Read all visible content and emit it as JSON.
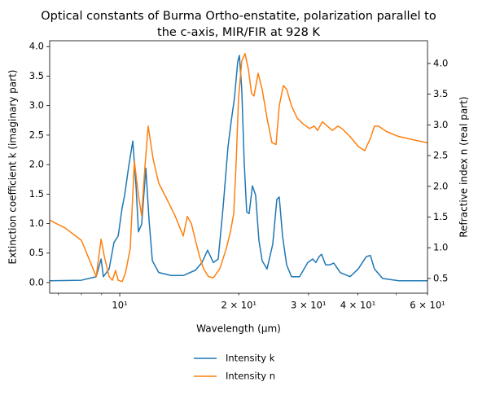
{
  "chart_data": {
    "type": "line",
    "title": [
      "Optical constants of Burma Ortho-enstatite, polarization parallel to",
      "the c-axis, MIR/FIR at 928 K"
    ],
    "x_label": "Wavelength (μm)",
    "y_label": "Extinction coefficient k (imaginary part)",
    "y2_label": "Refractive index n (real part)",
    "x_scale": "log",
    "xlim": [
      6.65,
      60
    ],
    "xticks": [
      {
        "value": 10,
        "label": "10¹"
      },
      {
        "value": 20,
        "label": "2 × 10¹"
      },
      {
        "value": 30,
        "label": "3 × 10¹"
      },
      {
        "value": 40,
        "label": "4 × 10¹"
      },
      {
        "value": 60,
        "label": "6 × 10¹"
      }
    ],
    "xminor_ticks": [
      7,
      8,
      9,
      50
    ],
    "ylim": [
      -0.18,
      4.1
    ],
    "yticks": [
      {
        "value": 0,
        "label": "0.0"
      },
      0.5,
      {
        "value": 1,
        "label": "1.0"
      },
      1.5,
      {
        "value": 2,
        "label": "2.0"
      },
      2.5,
      {
        "value": 3,
        "label": "3.0"
      },
      3.5,
      {
        "value": 4,
        "label": "4.0"
      }
    ],
    "y2lim": [
      0.26,
      4.37
    ],
    "y2ticks": [
      0.5,
      {
        "value": 1,
        "label": "1.0"
      },
      1.5,
      {
        "value": 2,
        "label": "2.0"
      },
      2.5,
      {
        "value": 3,
        "label": "3.0"
      },
      3.5,
      {
        "value": 4,
        "label": "4.0"
      }
    ],
    "legend": "lower center outside",
    "series": [
      {
        "name": "Intensity k",
        "color": "#1f77b4",
        "x": [
          6.65,
          8.0,
          8.72,
          8.97,
          9.09,
          9.4,
          9.67,
          9.91,
          10.14,
          10.29,
          10.53,
          10.79,
          11.0,
          11.15,
          11.36,
          11.64,
          11.86,
          12.09,
          12.55,
          13.48,
          14.47,
          15.54,
          16.14,
          16.68,
          17.24,
          17.74,
          18.25,
          18.78,
          19.14,
          19.5,
          19.88,
          20.07,
          20.35,
          20.64,
          20.94,
          21.24,
          21.65,
          22.06,
          22.48,
          22.91,
          23.57,
          24.37,
          24.96,
          25.31,
          25.8,
          26.42,
          27.18,
          28.49,
          29.88,
          30.74,
          31.32,
          31.92,
          32.38,
          33.16,
          33.95,
          34.77,
          36.11,
          38.22,
          40.07,
          42.02,
          43.02,
          44.06,
          46.19,
          50.78,
          60
        ],
        "values": [
          0.03,
          0.04,
          0.1,
          0.4,
          0.1,
          0.23,
          0.68,
          0.79,
          1.27,
          1.48,
          1.96,
          2.4,
          1.61,
          0.86,
          0.99,
          1.94,
          1.06,
          0.37,
          0.17,
          0.12,
          0.12,
          0.21,
          0.34,
          0.55,
          0.34,
          0.4,
          1.27,
          2.3,
          2.74,
          3.13,
          3.75,
          3.85,
          3.27,
          2.03,
          1.2,
          1.17,
          1.64,
          1.48,
          0.72,
          0.37,
          0.23,
          0.65,
          1.41,
          1.45,
          0.79,
          0.3,
          0.1,
          0.1,
          0.34,
          0.4,
          0.34,
          0.44,
          0.48,
          0.3,
          0.3,
          0.33,
          0.17,
          0.1,
          0.23,
          0.44,
          0.46,
          0.23,
          0.07,
          0.03,
          0.03
        ]
      },
      {
        "name": "Intensity n",
        "color": "#ff7f0e",
        "axis": "y2",
        "x": [
          6.65,
          7.28,
          8.0,
          8.47,
          8.72,
          8.97,
          9.14,
          9.4,
          9.58,
          9.76,
          9.91,
          10.14,
          10.34,
          10.63,
          10.89,
          11.15,
          11.36,
          11.58,
          11.8,
          12.14,
          12.55,
          13.16,
          13.8,
          14.47,
          14.82,
          15.18,
          15.54,
          15.91,
          16.29,
          16.76,
          17.24,
          17.91,
          18.6,
          19.05,
          19.42,
          19.69,
          19.97,
          20.35,
          20.74,
          21.14,
          21.54,
          21.85,
          22.38,
          22.91,
          23.57,
          24.26,
          24.84,
          25.31,
          25.92,
          26.42,
          27.18,
          28.1,
          29.04,
          30.16,
          31.03,
          31.62,
          32.53,
          33.47,
          34.44,
          35.6,
          36.46,
          38.22,
          40.07,
          41.62,
          43.02,
          44.06,
          45.12,
          47.3,
          50.78,
          55.85,
          60
        ],
        "values": [
          1.45,
          1.32,
          1.12,
          0.73,
          0.53,
          1.14,
          0.86,
          0.53,
          0.47,
          0.63,
          0.47,
          0.45,
          0.59,
          0.99,
          2.41,
          1.85,
          1.52,
          2.32,
          2.98,
          2.45,
          2.05,
          1.79,
          1.52,
          1.19,
          1.51,
          1.39,
          1.12,
          0.86,
          0.66,
          0.53,
          0.51,
          0.66,
          0.99,
          1.26,
          1.56,
          2.38,
          3.44,
          4.04,
          4.16,
          3.91,
          3.51,
          3.47,
          3.84,
          3.58,
          3.11,
          2.71,
          2.68,
          3.31,
          3.64,
          3.58,
          3.31,
          3.11,
          3.02,
          2.94,
          2.98,
          2.91,
          3.05,
          2.98,
          2.91,
          2.98,
          2.94,
          2.81,
          2.65,
          2.58,
          2.78,
          2.98,
          2.98,
          2.89,
          2.81,
          2.75,
          2.71
        ]
      }
    ]
  }
}
